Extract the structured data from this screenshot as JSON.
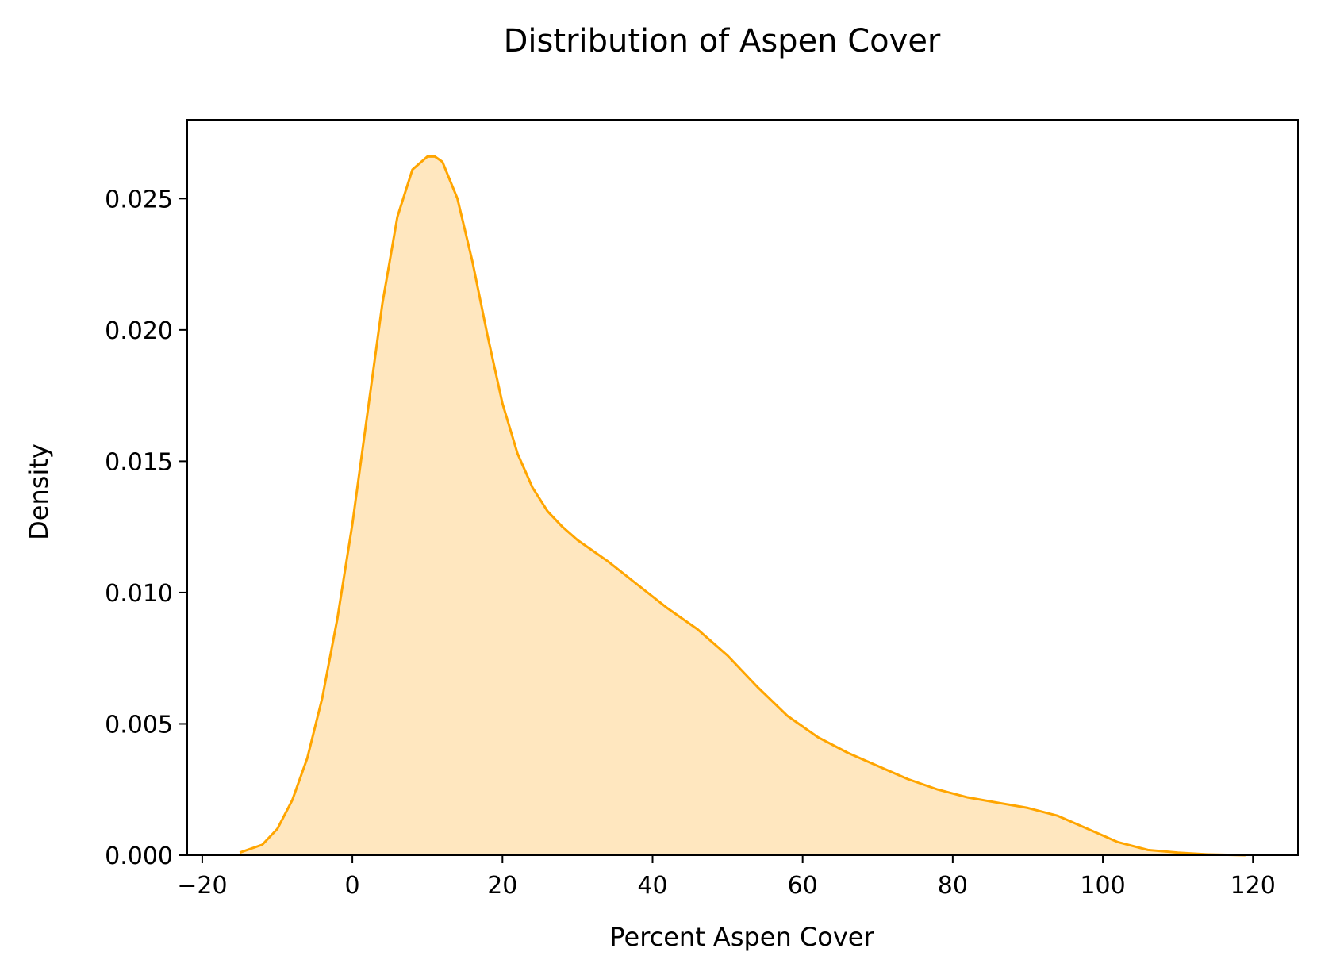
{
  "chart_data": {
    "type": "area",
    "title": "Distribution of Aspen Cover",
    "xlabel": "Percent Aspen Cover",
    "ylabel": "Density",
    "xlim": [
      -22,
      126
    ],
    "ylim": [
      0,
      0.028
    ],
    "x_ticks": [
      -20,
      0,
      20,
      40,
      60,
      80,
      100,
      120
    ],
    "x_tick_labels": [
      "−20",
      "0",
      "20",
      "40",
      "60",
      "80",
      "100",
      "120"
    ],
    "y_ticks": [
      0,
      0.005,
      0.01,
      0.015,
      0.02,
      0.025
    ],
    "y_tick_labels": [
      "0.000",
      "0.005",
      "0.010",
      "0.015",
      "0.020",
      "0.025"
    ],
    "grid": false,
    "legend": "none",
    "colors": {
      "line": "#FFA500",
      "fill": "#FFE7BF"
    },
    "series": [
      {
        "x": [
          -15,
          -12,
          -10,
          -8,
          -6,
          -4,
          -2,
          0,
          2,
          4,
          6,
          8,
          10,
          11,
          12,
          14,
          16,
          18,
          20,
          22,
          24,
          26,
          28,
          30,
          34,
          38,
          42,
          46,
          50,
          54,
          58,
          62,
          66,
          70,
          74,
          78,
          82,
          86,
          90,
          94,
          98,
          102,
          106,
          110,
          114,
          119
        ],
        "y": [
          0.0001,
          0.0004,
          0.001,
          0.0021,
          0.0037,
          0.006,
          0.009,
          0.0126,
          0.0168,
          0.021,
          0.0243,
          0.0261,
          0.0266,
          0.0266,
          0.0264,
          0.025,
          0.0226,
          0.0198,
          0.0172,
          0.0153,
          0.014,
          0.0131,
          0.0125,
          0.012,
          0.0112,
          0.0103,
          0.0094,
          0.0086,
          0.0076,
          0.0064,
          0.0053,
          0.0045,
          0.0039,
          0.0034,
          0.0029,
          0.0025,
          0.0022,
          0.002,
          0.0018,
          0.0015,
          0.001,
          0.0005,
          0.0002,
          0.0001,
          3e-05,
          0.0
        ]
      }
    ]
  }
}
